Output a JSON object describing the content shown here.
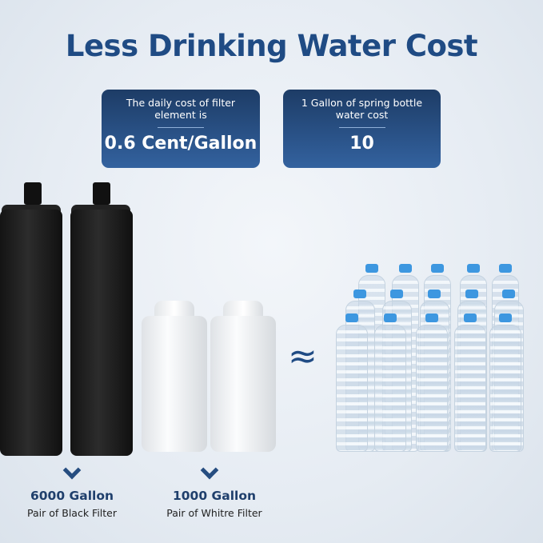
{
  "title": "Less Drinking Water Cost",
  "cards": [
    {
      "label": "The daily cost of filter element is",
      "value": "0.6 Cent/Gallon"
    },
    {
      "label": "1 Gallon of spring bottle water cost",
      "value": "10"
    }
  ],
  "approx_symbol": "≈",
  "filters": [
    {
      "capacity": "6000 Gallon",
      "name": "Pair of Black Filter"
    },
    {
      "capacity": "1000 Gallon",
      "name": "Pair of Whitre Filter"
    }
  ],
  "colors": {
    "accent": "#1f4b84",
    "card_top": "#1d3c66",
    "card_bottom": "#33629f",
    "bottle_cap": "#3d97e0"
  }
}
